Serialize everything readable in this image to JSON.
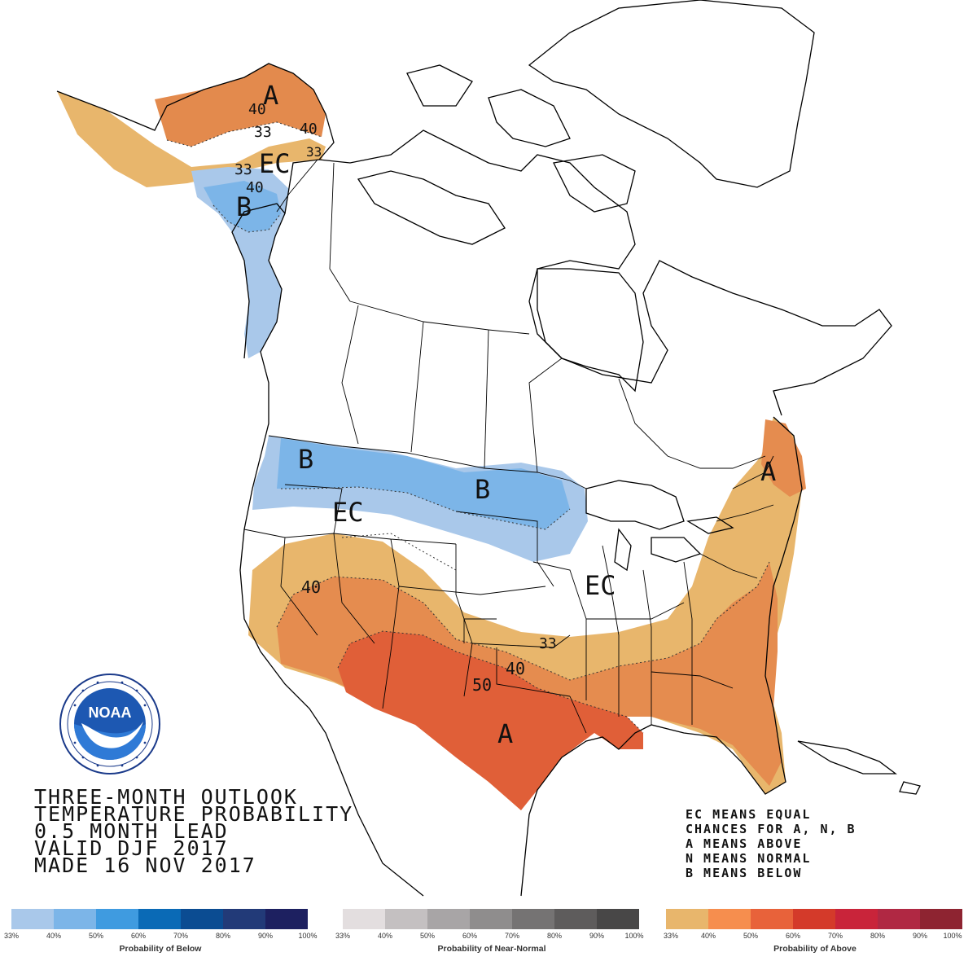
{
  "title_lines": [
    "THREE-MONTH OUTLOOK",
    "TEMPERATURE PROBABILITY",
    "0.5 MONTH LEAD",
    "VALID DJF 2017",
    "MADE 16 NOV 2017"
  ],
  "key_lines": [
    "EC MEANS EQUAL",
    "CHANCES FOR A, N, B",
    "A MEANS ABOVE",
    "N MEANS NORMAL",
    "B MEANS BELOW"
  ],
  "logo": {
    "text": "NOAA",
    "ring_text": "NATIONAL OCEANIC AND ATMOSPHERIC ADMINISTRATION · U.S. DEPARTMENT OF COMMERCE"
  },
  "map_labels": {
    "alaska_a": "A",
    "alaska_40": "40",
    "alaska_33": "33",
    "alaska_40b": "40",
    "alaska_33b": "33",
    "alaska_ec": "EC",
    "alaska_33c": "33",
    "alaska_40c": "40",
    "alaska_b": "B",
    "nw_b": "B",
    "plains_b": "B",
    "west_ec": "EC",
    "midwest_ec": "EC",
    "sw_40": "40",
    "south_33": "33",
    "south_40": "40",
    "south_50": "50",
    "texas_a": "A",
    "ne_a": "A"
  },
  "legends": [
    {
      "caption": "Probability of Below",
      "ticks": [
        "33%",
        "40%",
        "50%",
        "60%",
        "70%",
        "80%",
        "90%",
        "100%"
      ],
      "colors": [
        "#a9c8ea",
        "#7cb5e8",
        "#3f9be0",
        "#0a6ab6",
        "#0b4c92",
        "#223a78",
        "#1d2060",
        "#181a4e"
      ]
    },
    {
      "caption": "Probability of Near-Normal",
      "ticks": [
        "33%",
        "40%",
        "50%",
        "60%",
        "70%",
        "80%",
        "90%",
        "100%"
      ],
      "colors": [
        "#e3dedf",
        "#c4c0c1",
        "#a8a5a6",
        "#8f8d8d",
        "#757373",
        "#5e5c5c",
        "#484747",
        "#343333"
      ]
    },
    {
      "caption": "Probability of Above",
      "ticks": [
        "33%",
        "40%",
        "50%",
        "60%",
        "70%",
        "80%",
        "90%",
        "100%"
      ],
      "colors": [
        "#e8b66c",
        "#f68e4e",
        "#e8623a",
        "#d43a2a",
        "#c9243a",
        "#b02843",
        "#8e2431",
        "#6e1c1c"
      ]
    }
  ],
  "region_colors": {
    "above_33": "#e8b66c",
    "above_40": "#e88f4f",
    "above_50": "#e06038",
    "below_33": "#a9c8ea",
    "below_40": "#7cb5e8"
  }
}
